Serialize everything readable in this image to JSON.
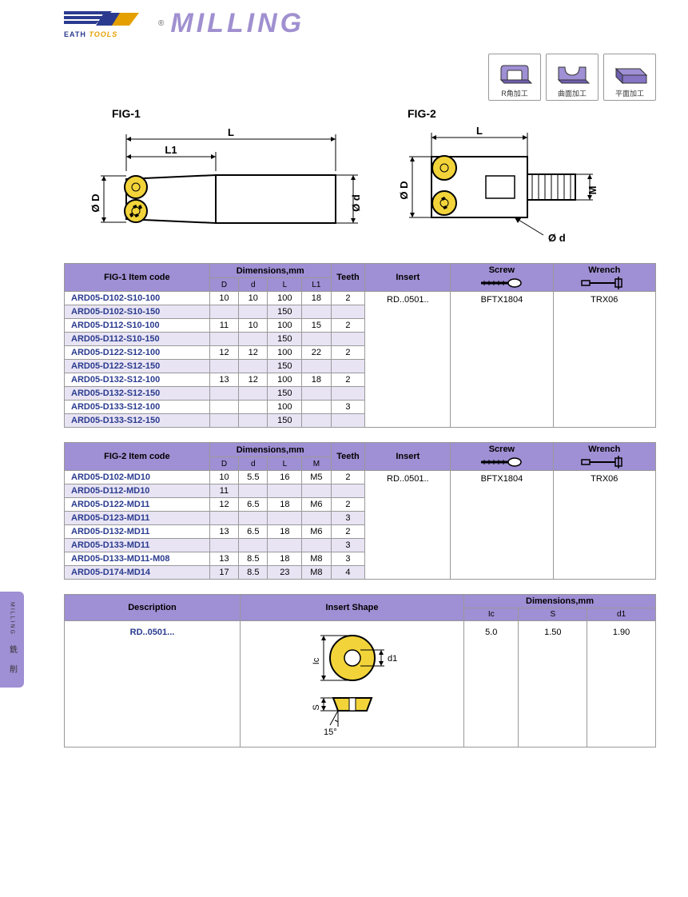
{
  "header": {
    "brand1": "EATH",
    "brand2": "TOOLS",
    "title": "MILLING",
    "reg": "®"
  },
  "appIcons": [
    {
      "label": "R角加工"
    },
    {
      "label": "曲面加工"
    },
    {
      "label": "平面加工"
    }
  ],
  "fig1": {
    "title": "FIG-1"
  },
  "fig2": {
    "title": "FIG-2"
  },
  "sideTab": {
    "line1": "MILLING",
    "line2": "銑 削"
  },
  "table1": {
    "head": {
      "itemcode": "FIG-1 Item code",
      "dims": "Dimensions,mm",
      "D": "D",
      "d": "d",
      "L": "L",
      "L1": "L1",
      "teeth": "Teeth",
      "insert": "Insert",
      "screw": "Screw",
      "wrench": "Wrench"
    },
    "insert": "RD..0501..",
    "screw": "BFTX1804",
    "wrench": "TRX06",
    "rows": [
      {
        "code": "ARD05-D102-S10-100",
        "D": "10",
        "d": "10",
        "L": "100",
        "L1": "18",
        "T": "2",
        "alt": false
      },
      {
        "code": "ARD05-D102-S10-150",
        "D": "",
        "d": "",
        "L": "150",
        "L1": "",
        "T": "",
        "alt": true
      },
      {
        "code": "ARD05-D112-S10-100",
        "D": "11",
        "d": "10",
        "L": "100",
        "L1": "15",
        "T": "2",
        "alt": false
      },
      {
        "code": "ARD05-D112-S10-150",
        "D": "",
        "d": "",
        "L": "150",
        "L1": "",
        "T": "",
        "alt": true
      },
      {
        "code": "ARD05-D122-S12-100",
        "D": "12",
        "d": "12",
        "L": "100",
        "L1": "22",
        "T": "2",
        "alt": false
      },
      {
        "code": "ARD05-D122-S12-150",
        "D": "",
        "d": "",
        "L": "150",
        "L1": "",
        "T": "",
        "alt": true
      },
      {
        "code": "ARD05-D132-S12-100",
        "D": "13",
        "d": "12",
        "L": "100",
        "L1": "18",
        "T": "2",
        "alt": false
      },
      {
        "code": "ARD05-D132-S12-150",
        "D": "",
        "d": "",
        "L": "150",
        "L1": "",
        "T": "",
        "alt": true
      },
      {
        "code": "ARD05-D133-S12-100",
        "D": "",
        "d": "",
        "L": "100",
        "L1": "",
        "T": "3",
        "alt": false
      },
      {
        "code": "ARD05-D133-S12-150",
        "D": "",
        "d": "",
        "L": "150",
        "L1": "",
        "T": "",
        "alt": true
      }
    ]
  },
  "table2": {
    "head": {
      "itemcode": "FIG-2 Item code",
      "dims": "Dimensions,mm",
      "D": "D",
      "d": "d",
      "L": "L",
      "M": "M",
      "teeth": "Teeth",
      "insert": "Insert",
      "screw": "Screw",
      "wrench": "Wrench"
    },
    "insert": "RD..0501..",
    "screw": "BFTX1804",
    "wrench": "TRX06",
    "rows": [
      {
        "code": "ARD05-D102-MD10",
        "D": "10",
        "d": "5.5",
        "L": "16",
        "M": "M5",
        "T": "2",
        "alt": false
      },
      {
        "code": "ARD05-D112-MD10",
        "D": "11",
        "d": "",
        "L": "",
        "M": "",
        "T": "",
        "alt": true
      },
      {
        "code": "ARD05-D122-MD11",
        "D": "12",
        "d": "6.5",
        "L": "18",
        "M": "M6",
        "T": "2",
        "alt": false
      },
      {
        "code": "ARD05-D123-MD11",
        "D": "",
        "d": "",
        "L": "",
        "M": "",
        "T": "3",
        "alt": true
      },
      {
        "code": "ARD05-D132-MD11",
        "D": "13",
        "d": "6.5",
        "L": "18",
        "M": "M6",
        "T": "2",
        "alt": false
      },
      {
        "code": "ARD05-D133-MD11",
        "D": "",
        "d": "",
        "L": "",
        "M": "",
        "T": "3",
        "alt": true
      },
      {
        "code": "ARD05-D133-MD11-M08",
        "D": "13",
        "d": "8.5",
        "L": "18",
        "M": "M8",
        "T": "3",
        "alt": false
      },
      {
        "code": "ARD05-D174-MD14",
        "D": "17",
        "d": "8.5",
        "L": "23",
        "M": "M8",
        "T": "4",
        "alt": true
      }
    ]
  },
  "table3": {
    "head": {
      "desc": "Description",
      "shape": "Insert Shape",
      "dims": "Dimensions,mm",
      "Ic": "Ic",
      "S": "S",
      "d1": "d1"
    },
    "row": {
      "desc": "RD..0501...",
      "Ic": "5.0",
      "S": "1.50",
      "d1": "1.90"
    },
    "shapeLabels": {
      "Ic": "Ic",
      "d1": "d1",
      "S": "S",
      "angle": "15°"
    }
  },
  "colors": {
    "purple": "#9f8fd4",
    "purpleLight": "#e8e4f4",
    "darkblue": "#2a3b8f",
    "insert": "#f2d43a",
    "border": "#999999"
  }
}
